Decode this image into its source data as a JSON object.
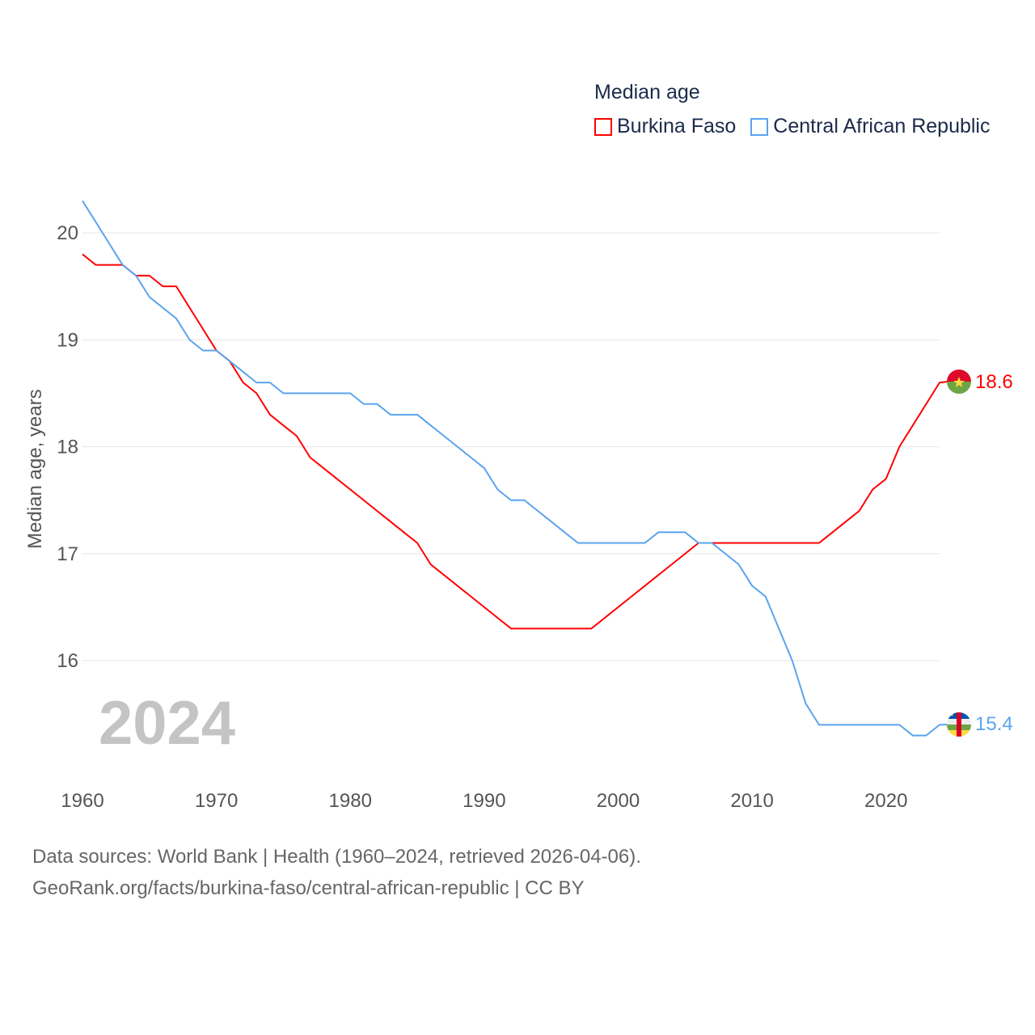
{
  "chart_data": {
    "type": "line",
    "title": "Median age",
    "ylabel": "Median age, years",
    "xlabel": "",
    "xlim": [
      1960,
      2024
    ],
    "ylim": [
      15.0,
      20.3
    ],
    "xticks": [
      "1960",
      "1970",
      "1980",
      "1990",
      "2000",
      "2010",
      "2020"
    ],
    "yticks": [
      "16",
      "17",
      "18",
      "19",
      "20"
    ],
    "grid": true,
    "legend_placement": "top-right",
    "year_label": "2024",
    "x": [
      1960,
      1961,
      1962,
      1963,
      1964,
      1965,
      1966,
      1967,
      1968,
      1969,
      1970,
      1971,
      1972,
      1973,
      1974,
      1975,
      1976,
      1977,
      1978,
      1979,
      1980,
      1981,
      1982,
      1983,
      1984,
      1985,
      1986,
      1987,
      1988,
      1989,
      1990,
      1991,
      1992,
      1993,
      1994,
      1995,
      1996,
      1997,
      1998,
      1999,
      2000,
      2001,
      2002,
      2003,
      2004,
      2005,
      2006,
      2007,
      2008,
      2009,
      2010,
      2011,
      2012,
      2013,
      2014,
      2015,
      2016,
      2017,
      2018,
      2019,
      2020,
      2021,
      2022,
      2023,
      2024
    ],
    "series": [
      {
        "name": "Burkina Faso",
        "color": "#ff0000",
        "end_label": "18.6",
        "values": [
          19.8,
          19.7,
          19.7,
          19.7,
          19.6,
          19.6,
          19.5,
          19.5,
          19.3,
          19.1,
          18.9,
          18.8,
          18.6,
          18.5,
          18.3,
          18.2,
          18.1,
          17.9,
          17.8,
          17.7,
          17.6,
          17.5,
          17.4,
          17.3,
          17.2,
          17.1,
          16.9,
          16.8,
          16.7,
          16.6,
          16.5,
          16.4,
          16.3,
          16.3,
          16.3,
          16.3,
          16.3,
          16.3,
          16.3,
          16.4,
          16.5,
          16.6,
          16.7,
          16.8,
          16.9,
          17.0,
          17.1,
          17.1,
          17.1,
          17.1,
          17.1,
          17.1,
          17.1,
          17.1,
          17.1,
          17.1,
          17.2,
          17.3,
          17.4,
          17.6,
          17.7,
          18.0,
          18.2,
          18.4,
          18.6
        ]
      },
      {
        "name": "Central African Republic",
        "color": "#5ba4ee",
        "end_label": "15.4",
        "values": [
          20.3,
          20.1,
          19.9,
          19.7,
          19.6,
          19.4,
          19.3,
          19.2,
          19.0,
          18.9,
          18.9,
          18.8,
          18.7,
          18.6,
          18.6,
          18.5,
          18.5,
          18.5,
          18.5,
          18.5,
          18.5,
          18.4,
          18.4,
          18.3,
          18.3,
          18.3,
          18.2,
          18.1,
          18.0,
          17.9,
          17.8,
          17.6,
          17.5,
          17.5,
          17.4,
          17.3,
          17.2,
          17.1,
          17.1,
          17.1,
          17.1,
          17.1,
          17.1,
          17.2,
          17.2,
          17.2,
          17.1,
          17.1,
          17.0,
          16.9,
          16.7,
          16.6,
          16.3,
          16.0,
          15.6,
          15.4,
          15.4,
          15.4,
          15.4,
          15.4,
          15.4,
          15.4,
          15.3,
          15.3,
          15.4
        ]
      }
    ]
  },
  "legend": {
    "title": "Median age",
    "items": [
      "Burkina Faso",
      "Central African Republic"
    ]
  },
  "footer": {
    "line1": "Data sources: World Bank | Health (1960–2024, retrieved 2026-04-06).",
    "line2": "GeoRank.org/facts/burkina-faso/central-african-republic | CC BY"
  }
}
